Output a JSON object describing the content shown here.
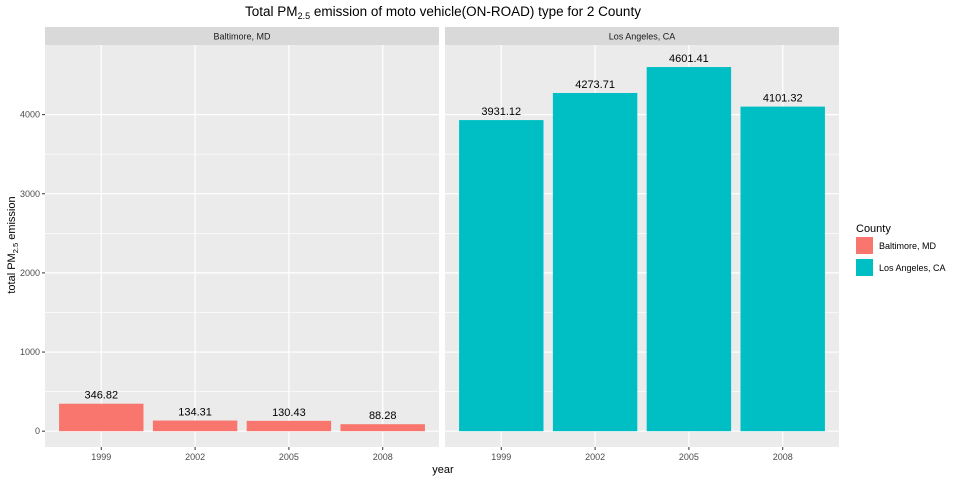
{
  "chart_data": {
    "type": "bar",
    "title_main": "Total PM",
    "title_sub": "2.5",
    "title_rest": " emission of moto vehicle(ON-ROAD) type for 2 County",
    "xlabel": "year",
    "ylabel_main": "total PM",
    "ylabel_sub": "2.5",
    "ylabel_rest": " emission",
    "categories": [
      "1999",
      "2002",
      "2005",
      "2008"
    ],
    "ylim": [
      -200,
      4880
    ],
    "yticks": [
      0,
      1000,
      2000,
      3000,
      4000
    ],
    "ytick_labels": [
      "0",
      "1000",
      "2000",
      "3000",
      "4000"
    ],
    "grid": true,
    "legend": {
      "title": "County",
      "position": "right"
    },
    "panels": [
      {
        "name": "Baltimore, MD",
        "color": "#F8766D",
        "values": [
          346.82,
          134.31,
          130.43,
          88.28
        ],
        "labels": [
          "346.82",
          "134.31",
          "130.43",
          "88.28"
        ]
      },
      {
        "name": "Los Angeles, CA",
        "color": "#00BFC4",
        "values": [
          3931.12,
          4273.71,
          4601.41,
          4101.32
        ],
        "labels": [
          "3931.12",
          "4273.71",
          "4601.41",
          "4101.32"
        ]
      }
    ]
  }
}
